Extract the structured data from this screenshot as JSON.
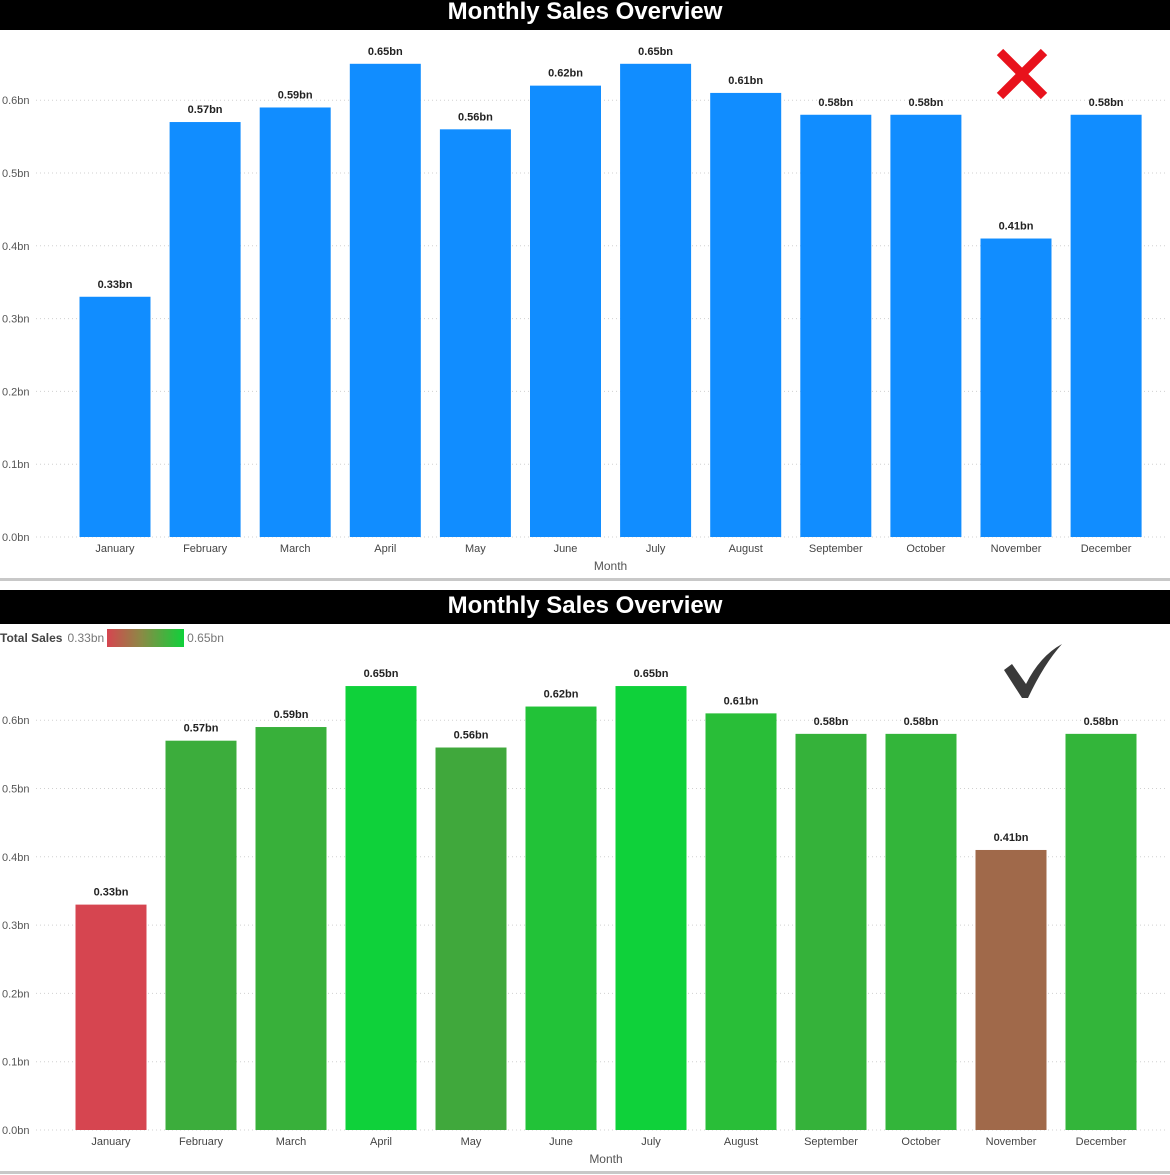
{
  "charts": [
    {
      "title": "Monthly Sales Overview",
      "status_mark": "red-x",
      "color": "#118dff"
    },
    {
      "title": "Monthly Sales Overview",
      "status_mark": "checkmark",
      "legend": {
        "label": "Total Sales",
        "min": "0.33bn",
        "max": "0.65bn",
        "min_color": "#d64550",
        "max_color": "#0fd13a"
      }
    }
  ],
  "chart_data": [
    {
      "type": "bar",
      "title": "Monthly Sales Overview",
      "xlabel": "Month",
      "ylabel": "",
      "categories": [
        "January",
        "February",
        "March",
        "April",
        "May",
        "June",
        "July",
        "August",
        "September",
        "October",
        "November",
        "December"
      ],
      "values": [
        0.33,
        0.57,
        0.59,
        0.65,
        0.56,
        0.62,
        0.65,
        0.61,
        0.58,
        0.58,
        0.41,
        0.58
      ],
      "data_labels": [
        "0.33bn",
        "0.57bn",
        "0.59bn",
        "0.65bn",
        "0.56bn",
        "0.62bn",
        "0.65bn",
        "0.61bn",
        "0.58bn",
        "0.58bn",
        "0.41bn",
        "0.58bn"
      ],
      "yticks": [
        "0.0bn",
        "0.1bn",
        "0.2bn",
        "0.3bn",
        "0.4bn",
        "0.5bn",
        "0.6bn"
      ],
      "ylim": [
        0,
        0.65
      ],
      "grid": true,
      "bar_color": "#118dff"
    },
    {
      "type": "bar",
      "title": "Monthly Sales Overview",
      "xlabel": "Month",
      "ylabel": "",
      "categories": [
        "January",
        "February",
        "March",
        "April",
        "May",
        "June",
        "July",
        "August",
        "September",
        "October",
        "November",
        "December"
      ],
      "values": [
        0.33,
        0.57,
        0.59,
        0.65,
        0.56,
        0.62,
        0.65,
        0.61,
        0.58,
        0.58,
        0.41,
        0.58
      ],
      "data_labels": [
        "0.33bn",
        "0.57bn",
        "0.59bn",
        "0.65bn",
        "0.56bn",
        "0.62bn",
        "0.65bn",
        "0.61bn",
        "0.58bn",
        "0.58bn",
        "0.41bn",
        "0.58bn"
      ],
      "yticks": [
        "0.0bn",
        "0.1bn",
        "0.2bn",
        "0.3bn",
        "0.4bn",
        "0.5bn",
        "0.6bn"
      ],
      "ylim": [
        0,
        0.65
      ],
      "grid": true,
      "colors": [
        "#d64550",
        "#3cad3c",
        "#38b03a",
        "#0fd13a",
        "#40a83c",
        "#22c238",
        "#0fd13a",
        "#29be38",
        "#35b23a",
        "#33b53a",
        "#a0694a",
        "#33b53a"
      ]
    }
  ]
}
